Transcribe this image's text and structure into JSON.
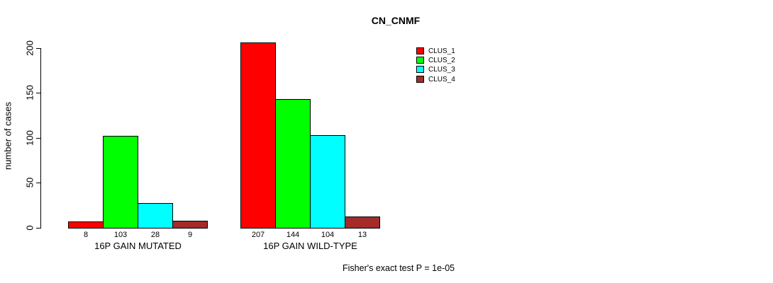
{
  "page": {
    "background": "#ffffff",
    "text_color": "#000000"
  },
  "chart_data": {
    "type": "bar",
    "title": "CN_CNMF",
    "ylabel": "number of cases",
    "xlabel": "",
    "yticks": [
      0,
      50,
      100,
      150,
      200
    ],
    "ylim": [
      0,
      207
    ],
    "grid": false,
    "legend_position": "top-right",
    "axis_color": "#000000",
    "bar_border_color": "#000000",
    "categories": [
      "16P GAIN MUTATED",
      "16P GAIN WILD-TYPE"
    ],
    "series": [
      {
        "name": "CLUS_1",
        "color": "#ff0000",
        "values": [
          8,
          207
        ]
      },
      {
        "name": "CLUS_2",
        "color": "#00ff00",
        "values": [
          103,
          144
        ]
      },
      {
        "name": "CLUS_3",
        "color": "#00ffff",
        "values": [
          28,
          104
        ]
      },
      {
        "name": "CLUS_4",
        "color": "#a52a2a",
        "values": [
          9,
          13
        ]
      }
    ],
    "bar_value_labels": [
      [
        8,
        103,
        28,
        9
      ],
      [
        207,
        144,
        104,
        13
      ]
    ],
    "annotation": "Fisher's exact test P = 1e-05"
  }
}
